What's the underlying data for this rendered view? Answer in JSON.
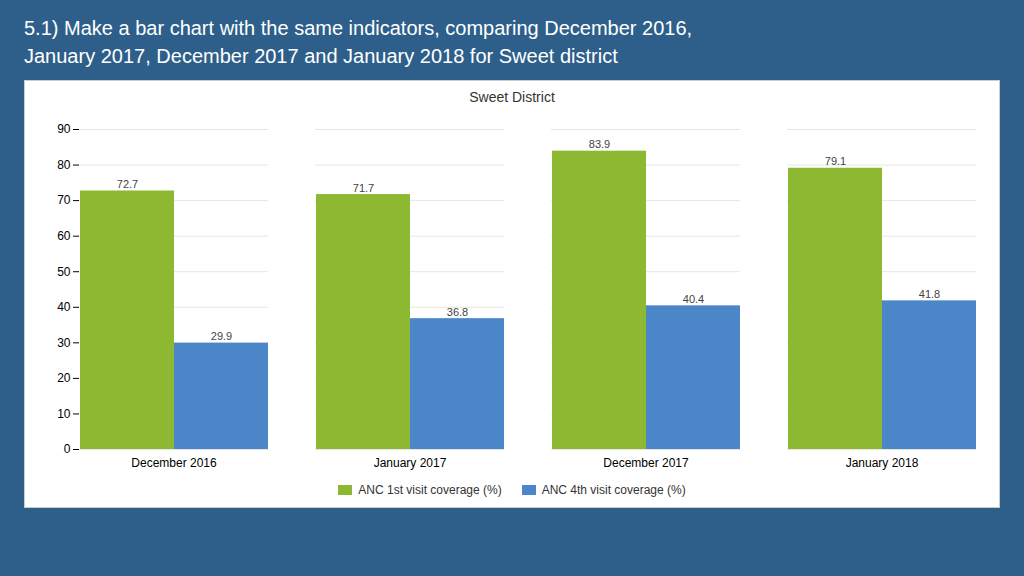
{
  "chart_data": {
    "type": "bar",
    "title": "Sweet District",
    "subtitle": "5.1) Make a bar chart with the same indicators, comparing December 2016,\nJanuary 2017, December 2017 and January 2018 for Sweet district",
    "categories": [
      "December 2016",
      "January 2017",
      "December 2017",
      "January 2018"
    ],
    "series": [
      {
        "name": "ANC 1st visit coverage (%)",
        "color": "#8db832",
        "values": [
          72.7,
          71.7,
          83.9,
          79.1
        ]
      },
      {
        "name": "ANC 4th visit coverage (%)",
        "color": "#4a86c8",
        "values": [
          29.9,
          36.8,
          40.4,
          41.8
        ]
      }
    ],
    "ylim": [
      0,
      90
    ],
    "yticks": [
      0,
      10,
      20,
      30,
      40,
      50,
      60,
      70,
      80,
      90
    ],
    "grid": true,
    "data_labels": true,
    "legend": "bottom"
  }
}
